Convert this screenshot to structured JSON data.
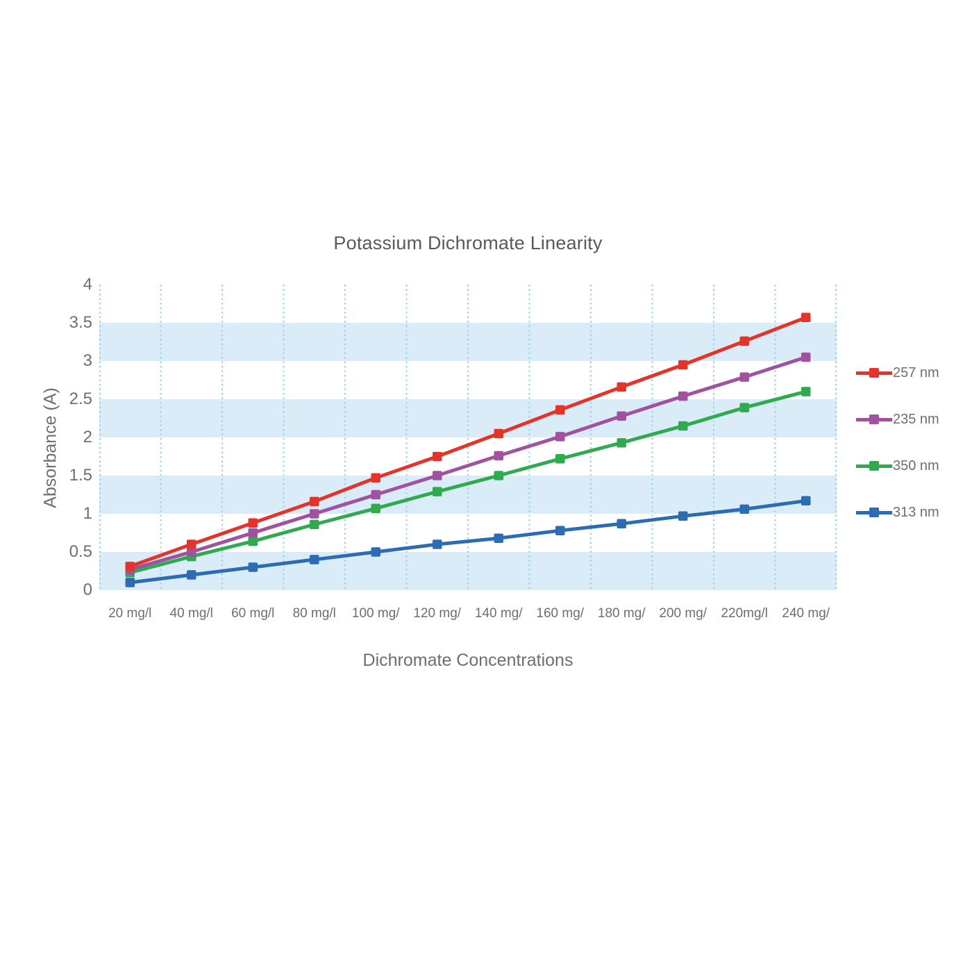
{
  "chart_data": {
    "type": "line",
    "title": "Potassium Dichromate Linearity",
    "xlabel": "Dichromate Concentrations",
    "ylabel": "Absorbance (A)",
    "categories": [
      "20 mg/l",
      "40 mg/l",
      "60 mg/l",
      "80 mg/l",
      "100 mg/",
      "120 mg/",
      "140 mg/",
      "160 mg/",
      "180 mg/",
      "200 mg/",
      "220mg/l",
      "240 mg/"
    ],
    "y_tick_labels": [
      "0",
      "0.5",
      "1",
      "1.5",
      "2",
      "2.5",
      "3",
      "3.5",
      "4"
    ],
    "y_tick_values": [
      0,
      0.5,
      1,
      1.5,
      2,
      2.5,
      3,
      3.5,
      4
    ],
    "ylim": [
      0,
      4
    ],
    "legend_position": "right",
    "grid": {
      "vertical_dotted_lines": true,
      "horizontal_shaded_bands": [
        [
          0,
          0.5
        ],
        [
          1,
          1.5
        ],
        [
          2,
          2.5
        ],
        [
          3,
          3.5
        ]
      ]
    },
    "series": [
      {
        "name": "257 nm",
        "color": "#e6332a",
        "marker": "square",
        "values": [
          0.31,
          0.6,
          0.88,
          1.16,
          1.47,
          1.75,
          2.05,
          2.36,
          2.66,
          2.95,
          3.26,
          3.57
        ]
      },
      {
        "name": "235 nm",
        "color": "#a0519f",
        "marker": "square",
        "values": [
          0.27,
          0.5,
          0.75,
          1.0,
          1.25,
          1.5,
          1.76,
          2.01,
          2.28,
          2.54,
          2.79,
          3.05
        ]
      },
      {
        "name": "350 nm",
        "color": "#2faa4f",
        "marker": "square",
        "values": [
          0.23,
          0.44,
          0.64,
          0.86,
          1.07,
          1.29,
          1.5,
          1.72,
          1.93,
          2.15,
          2.39,
          2.6
        ]
      },
      {
        "name": "313 nm",
        "color": "#2b6cb5",
        "marker": "square",
        "values": [
          0.1,
          0.2,
          0.3,
          0.4,
          0.5,
          0.6,
          0.68,
          0.78,
          0.87,
          0.97,
          1.06,
          1.17
        ]
      }
    ],
    "style": {
      "band_color": "#d9ecf8",
      "gridline_color": "#8fd6f2",
      "tick_text_color": "#6d6e71",
      "title_color": "#58595b",
      "line_width": 5,
      "marker_size": 13.5
    }
  }
}
